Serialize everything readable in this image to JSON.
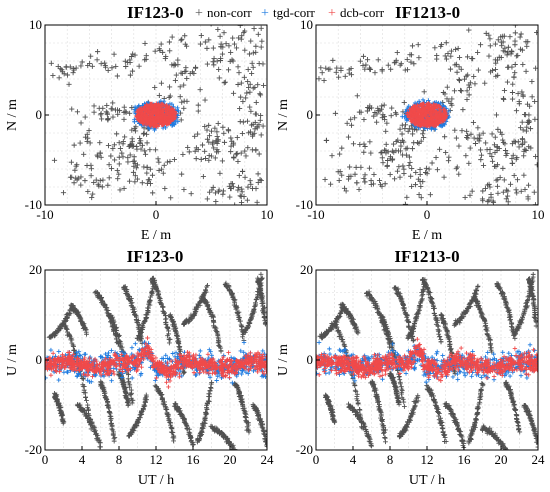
{
  "legend": {
    "entries": [
      {
        "label": "non-corr",
        "color": "#505050"
      },
      {
        "label": "tgd-corr",
        "color": "#1e7be0"
      },
      {
        "label": "dcb-corr",
        "color": "#f04a4a"
      }
    ],
    "marker": "+"
  },
  "chart_data": [
    {
      "type": "scatter",
      "title": "IF123-0",
      "xlabel": "E / m",
      "ylabel": "N / m",
      "xlim": [
        -10,
        10
      ],
      "ylim": [
        -10,
        10
      ],
      "xticks": [
        -10,
        0,
        10
      ],
      "yticks": [
        -10,
        0,
        10
      ],
      "grid": true,
      "series": [
        {
          "name": "non-corr",
          "color": "#505050",
          "spread": "wide scatter, roughly -9..10 E, -10..10 N, concentrated toward upper-right and lower-left"
        },
        {
          "name": "tgd-corr",
          "color": "#1e7be0",
          "center": [
            0,
            0
          ],
          "radius": [
            2,
            1.5
          ]
        },
        {
          "name": "dcb-corr",
          "color": "#f04a4a",
          "center": [
            0,
            0
          ],
          "radius": [
            1.8,
            1.3
          ]
        }
      ]
    },
    {
      "type": "scatter",
      "title": "IF1213-0",
      "xlabel": "E / m",
      "ylabel": "N / m",
      "xlim": [
        -10,
        10
      ],
      "ylim": [
        -10,
        10
      ],
      "xticks": [
        -10,
        0,
        10
      ],
      "yticks": [
        -10,
        0,
        10
      ],
      "grid": true,
      "series": [
        {
          "name": "non-corr",
          "color": "#505050",
          "spread": "wide scatter, roughly -9..10 E, -10..10 N"
        },
        {
          "name": "tgd-corr",
          "color": "#1e7be0",
          "center": [
            0,
            0
          ],
          "radius": [
            2,
            1.5
          ]
        },
        {
          "name": "dcb-corr",
          "color": "#f04a4a",
          "center": [
            0,
            0
          ],
          "radius": [
            1.8,
            1.3
          ]
        }
      ]
    },
    {
      "type": "scatter",
      "title": "IF123-0",
      "xlabel": "UT / h",
      "ylabel": "U / m",
      "xlim": [
        0,
        24
      ],
      "ylim": [
        -20,
        20
      ],
      "xticks": [
        0,
        4,
        8,
        12,
        16,
        20,
        24
      ],
      "yticks": [
        -20,
        0,
        20
      ],
      "grid": true,
      "series": [
        {
          "name": "non-corr",
          "color": "#505050",
          "spread": "large excursions between -20 and 20 m"
        },
        {
          "name": "tgd-corr",
          "color": "#1e7be0",
          "spread": "band around -1 m, ±3 m"
        },
        {
          "name": "dcb-corr",
          "color": "#f04a4a",
          "spread": "band around -1 m, ±2.5 m, peak ~+4 m near 11 h"
        }
      ]
    },
    {
      "type": "scatter",
      "title": "IF1213-0",
      "xlabel": "UT / h",
      "ylabel": "U / m",
      "xlim": [
        0,
        24
      ],
      "ylim": [
        -20,
        20
      ],
      "xticks": [
        0,
        4,
        8,
        12,
        16,
        20,
        24
      ],
      "yticks": [
        -20,
        0,
        20
      ],
      "grid": true,
      "series": [
        {
          "name": "non-corr",
          "color": "#505050",
          "spread": "large excursions between -20 and 20 m"
        },
        {
          "name": "tgd-corr",
          "color": "#1e7be0",
          "spread": "band around -1 m, ±3 m"
        },
        {
          "name": "dcb-corr",
          "color": "#f04a4a",
          "spread": "band around -1 m, ±2.5 m, peak ~+4 m near 11 h"
        }
      ]
    }
  ]
}
